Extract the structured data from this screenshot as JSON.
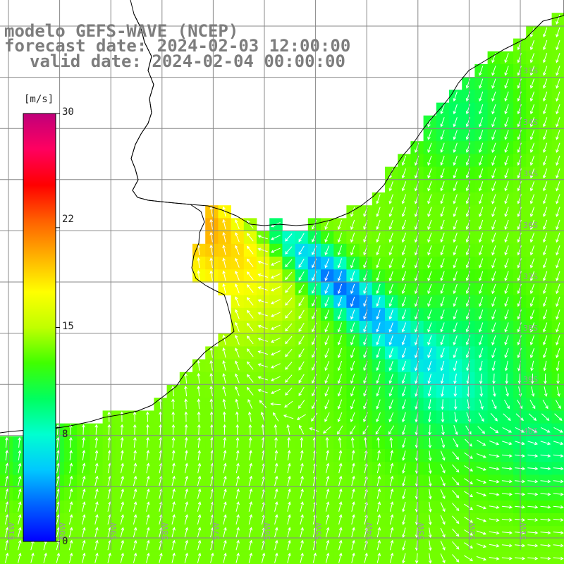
{
  "title": {
    "line1": "modelo GEFS-WAVE (NCEP)",
    "line2": "forecast date: 2024-02-03 12:00:00",
    "line3": "valid date: 2024-02-04 00:00:00"
  },
  "colorbar": {
    "unit": "[m/s]",
    "min": 0,
    "max": 30,
    "tick_labels": [
      "30",
      "22",
      "15",
      "8",
      "0"
    ],
    "tick_values": [
      30,
      22,
      15,
      8,
      0
    ],
    "colors": [
      "#0000ff",
      "#0060ff",
      "#00c8ff",
      "#00ffd0",
      "#00ff60",
      "#40ff00",
      "#c0ff00",
      "#ffff00",
      "#ffb000",
      "#ff6000",
      "#ff0000",
      "#ff0060",
      "#c0007a"
    ]
  },
  "map": {
    "latitude_labels": [
      "33S",
      "34S",
      "35S",
      "36S",
      "37S",
      "38S",
      "39S",
      "40S"
    ],
    "longitude_labels": [
      "61W",
      "60W",
      "59W",
      "58W",
      "57W",
      "56W",
      "55W",
      "54W",
      "53W",
      "52W",
      "51W"
    ],
    "dominant_wind_direction": "from south-southeast",
    "grid_lines": true
  }
}
